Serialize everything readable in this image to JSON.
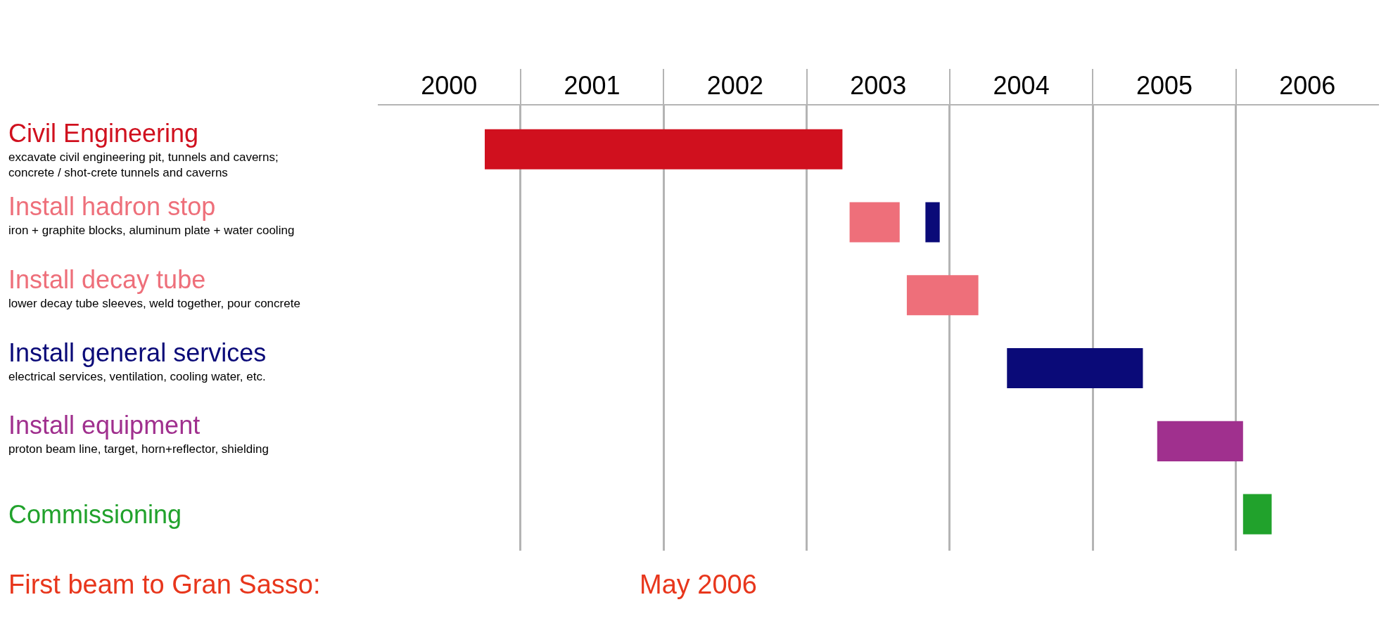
{
  "chart_data": {
    "type": "bar",
    "orientation": "horizontal",
    "categories": [
      "Civil Engineering\nexcavate civil engineering pit, tunnels and caverns;\nconcrete / shot-crete tunnels and caverns",
      "Install hadron stop\niron + graphite blocks, aluminum plate + water cooling",
      "Install decay tube\nlower decay tube sleeves, weld together, pour concrete",
      "Install general services\nelectrical services, ventilation, cooling water, etc.",
      "Install equipment\nproton beam line, target, horn+reflector, shielding",
      "Commissioning"
    ],
    "series": [
      {
        "colors": [
          "#d0101e",
          "#ee6f7a",
          "#ee6f7a",
          "#0a0a78",
          "#a0308e",
          "#21a22c"
        ],
        "base": [
          2000.75,
          2003.3,
          2003.7,
          2004.4,
          2005.45,
          2006.05
        ],
        "values": [
          2.5,
          0.35,
          0.5,
          0.95,
          0.6,
          0.2
        ]
      },
      {
        "colors": [
          null,
          "#0a0a78",
          null,
          null,
          null,
          null
        ],
        "base": [
          null,
          2003.83,
          null,
          null,
          null,
          null
        ],
        "values": [
          null,
          0.1,
          null,
          null,
          null,
          null
        ]
      }
    ],
    "xlim": [
      2000,
      2007
    ],
    "xticks": [
      {
        "value": 2000.5,
        "label": "2000"
      },
      {
        "value": 2001,
        "label": null
      },
      {
        "value": 2001.5,
        "label": "2001"
      },
      {
        "value": 2002,
        "label": null
      },
      {
        "value": 2002.5,
        "label": "2002"
      },
      {
        "value": 2003,
        "label": null
      },
      {
        "value": 2003.5,
        "label": "2003"
      },
      {
        "value": 2004,
        "label": null
      },
      {
        "value": 2004.5,
        "label": "2004"
      },
      {
        "value": 2005,
        "label": null
      },
      {
        "value": 2005.5,
        "label": "2005"
      },
      {
        "value": 2006,
        "label": null
      },
      {
        "value": 2006.5,
        "label": "2006"
      }
    ],
    "grid": "x",
    "annotations": [
      "First beam to Gran Sasso:",
      "May 2006"
    ]
  }
}
